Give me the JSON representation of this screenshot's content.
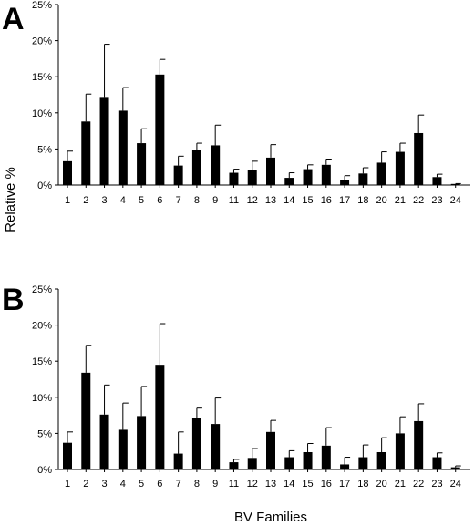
{
  "axis_titles": {
    "y": "Relative %",
    "x": "BV Families"
  },
  "colors": {
    "bar": "#000000",
    "axis": "#000000"
  },
  "chart_data": [
    {
      "type": "bar",
      "panel_label": "A",
      "categories": [
        "1",
        "2",
        "3",
        "4",
        "5",
        "6",
        "7",
        "8",
        "9",
        "11",
        "12",
        "13",
        "14",
        "15",
        "16",
        "17",
        "18",
        "20",
        "21",
        "22",
        "23",
        "24"
      ],
      "values": [
        3.3,
        8.8,
        12.2,
        10.3,
        5.8,
        15.3,
        2.7,
        4.8,
        5.5,
        1.7,
        2.1,
        3.8,
        1.0,
        2.2,
        2.8,
        0.7,
        1.6,
        3.1,
        4.6,
        7.2,
        1.1,
        0.15
      ],
      "errors": [
        1.4,
        3.8,
        7.3,
        3.2,
        2.0,
        2.1,
        1.3,
        1.0,
        2.8,
        0.5,
        1.2,
        1.8,
        0.7,
        0.6,
        0.8,
        0.6,
        0.8,
        1.5,
        1.2,
        2.5,
        0.4,
        0.05
      ],
      "ylim": [
        0,
        25
      ],
      "yticks": [
        "0%",
        "5%",
        "10%",
        "15%",
        "20%",
        "25%"
      ],
      "ylabel": "Relative %",
      "xlabel": ""
    },
    {
      "type": "bar",
      "panel_label": "B",
      "categories": [
        "1",
        "2",
        "3",
        "4",
        "5",
        "6",
        "7",
        "8",
        "9",
        "11",
        "12",
        "13",
        "14",
        "15",
        "16",
        "17",
        "18",
        "20",
        "21",
        "22",
        "23",
        "24"
      ],
      "values": [
        3.7,
        13.4,
        7.6,
        5.5,
        7.4,
        14.5,
        2.2,
        7.1,
        6.3,
        1.0,
        1.6,
        5.2,
        1.7,
        2.4,
        3.3,
        0.7,
        1.7,
        2.4,
        5.0,
        6.7,
        1.7,
        0.3
      ],
      "errors": [
        1.5,
        3.8,
        4.1,
        3.7,
        4.1,
        5.7,
        3.0,
        1.4,
        3.6,
        0.4,
        1.3,
        1.6,
        0.9,
        1.2,
        2.5,
        1.0,
        1.7,
        2.0,
        2.3,
        2.4,
        0.6,
        0.2
      ],
      "ylim": [
        0,
        25
      ],
      "yticks": [
        "0%",
        "5%",
        "10%",
        "15%",
        "20%",
        "25%"
      ],
      "ylabel": "Relative %",
      "xlabel": "BV Families"
    }
  ]
}
